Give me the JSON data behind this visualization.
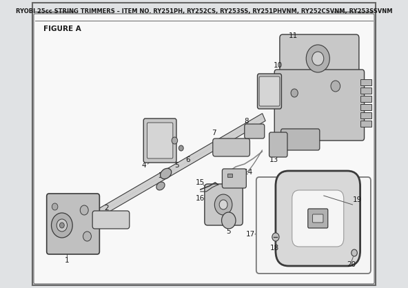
{
  "title": "RYOBI 25cc STRING TRIMMERS – ITEM NO. RY251PH, RY252CS, RY253SS, RY251PHVNM, RY252CSVNM, RY253SSVNM",
  "figure_label": "FIGURE A",
  "bg_color": "#e0e2e4",
  "inner_bg": "#f0f1f2",
  "border_color": "#555555",
  "text_color": "#1a1a1a",
  "title_fontsize": 6.0,
  "figure_label_fontsize": 7.5,
  "part_label_fontsize": 7.5
}
